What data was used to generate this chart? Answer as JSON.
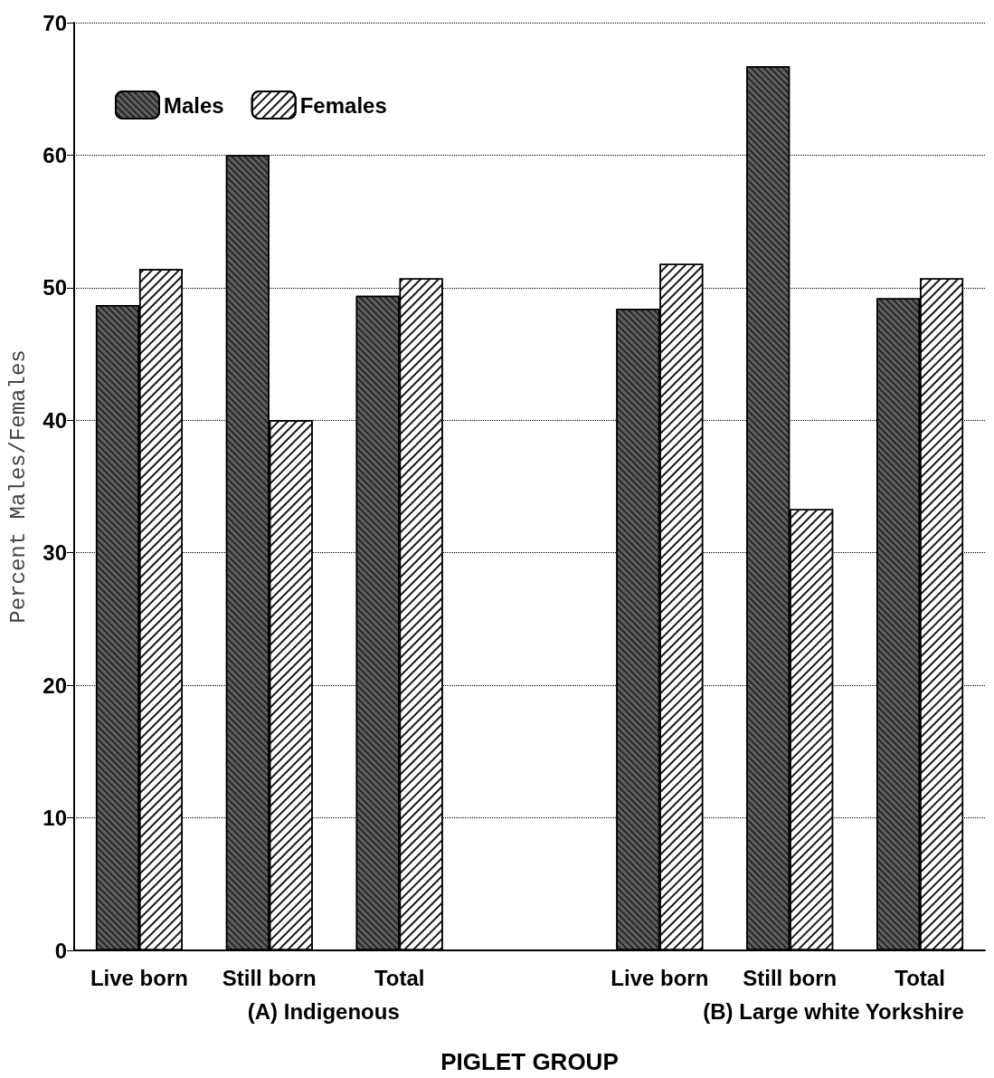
{
  "chart_data": {
    "type": "bar",
    "categories": [
      "Live born",
      "Still born",
      "Total",
      null,
      "Live born",
      "Still born",
      "Total"
    ],
    "series": [
      {
        "name": "Males",
        "color": "#606060",
        "values": [
          48.7,
          60,
          49.4,
          null,
          48.4,
          66.7,
          49.2
        ]
      },
      {
        "name": "Females",
        "color": "#ffffff",
        "values": [
          51.4,
          40,
          50.7,
          null,
          51.8,
          33.3,
          50.7
        ]
      }
    ],
    "xlabel": "PIGLET GROUP",
    "ylabel": "Percent Males/Females",
    "annotations": [
      "(A) Indigenous",
      "(B) Large white Yorkshire"
    ],
    "ylim": [
      0,
      70
    ],
    "yticks": [
      0,
      10,
      20,
      30,
      40,
      50,
      60,
      70
    ],
    "grid": "y",
    "legend": "top left"
  }
}
